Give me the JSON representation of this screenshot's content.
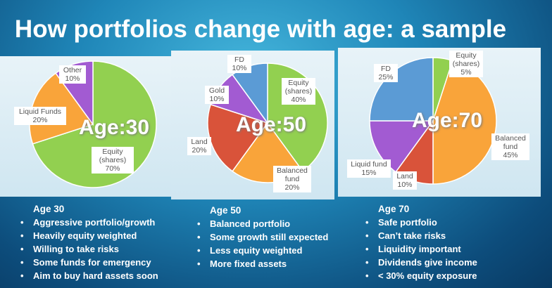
{
  "slide_title": "How portfolios change with age: a sample",
  "chart_data": [
    {
      "type": "pie",
      "title": "Age:30",
      "categories": [
        "Equity (shares)",
        "Liquid Funds",
        "Other"
      ],
      "values": [
        70,
        20,
        10
      ],
      "value_labels": [
        "70%",
        "20%",
        "10%"
      ],
      "colors": [
        "#92d050",
        "#f9a43a",
        "#a25bd2"
      ]
    },
    {
      "type": "pie",
      "title": "Age:50",
      "categories": [
        "Equity (shares)",
        "Balanced fund",
        "Land",
        "Gold",
        "FD"
      ],
      "values": [
        40,
        20,
        20,
        10,
        10
      ],
      "value_labels": [
        "40%",
        "20%",
        "20%",
        "10%",
        "10%"
      ],
      "colors": [
        "#92d050",
        "#f9a43a",
        "#d9533a",
        "#a25bd2",
        "#5b9bd5"
      ]
    },
    {
      "type": "pie",
      "title": "Age:70",
      "categories": [
        "Equity (shares)",
        "Balanced fund",
        "Land",
        "Liquid fund",
        "FD"
      ],
      "values": [
        5,
        45,
        10,
        15,
        25
      ],
      "value_labels": [
        "5%",
        "45%",
        "10%",
        "15%",
        "25%"
      ],
      "colors": [
        "#92d050",
        "#f9a43a",
        "#d9533a",
        "#a25bd2",
        "#5b9bd5"
      ]
    }
  ],
  "notes": [
    {
      "heading": "Age 30",
      "items": [
        "Aggressive portfolio/growth",
        "Heavily equity weighted",
        "Willing to take risks",
        "Some funds for emergency",
        "Aim to buy hard assets soon"
      ]
    },
    {
      "heading": "Age 50",
      "items": [
        "Balanced portfolio",
        "Some growth still expected",
        "Less equity weighted",
        "More fixed assets"
      ]
    },
    {
      "heading": "Age 70",
      "items": [
        "Safe portfolio",
        "Can’t take risks",
        "Liquidity important",
        "Dividends give income",
        "< 30% equity exposure"
      ]
    }
  ]
}
